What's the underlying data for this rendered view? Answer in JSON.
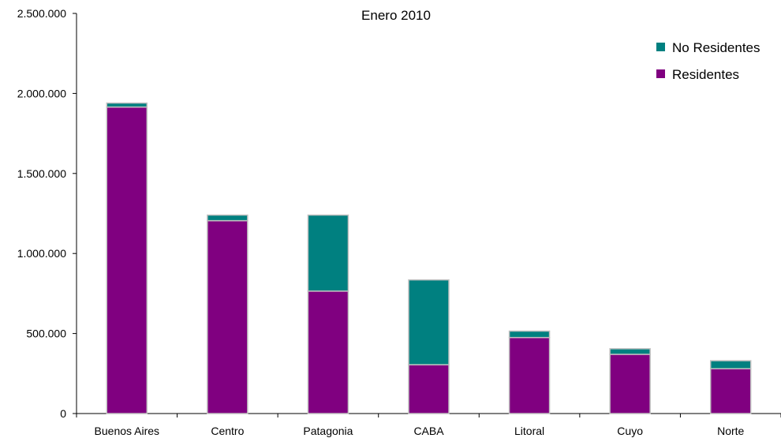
{
  "chart_data": {
    "type": "bar",
    "stacked": true,
    "title": "Enero 2010",
    "xlabel": "",
    "ylabel": "",
    "categories": [
      "Buenos Aires",
      "Centro",
      "Patagonia",
      "CABA",
      "Litoral",
      "Cuyo",
      "Norte"
    ],
    "series": [
      {
        "name": "Residentes",
        "color": "#800080",
        "values": [
          1915000,
          1205000,
          765000,
          305000,
          475000,
          370000,
          280000
        ]
      },
      {
        "name": "No Residentes",
        "color": "#008080",
        "values": [
          25000,
          35000,
          475000,
          530000,
          40000,
          35000,
          50000
        ]
      }
    ],
    "ylim": [
      0,
      2500000
    ],
    "yticks": [
      0,
      500000,
      1000000,
      1500000,
      2000000,
      2500000
    ],
    "ytick_labels": [
      "0",
      "500.000",
      "1.000.000",
      "1.500.000",
      "2.000.000",
      "2.500.000"
    ],
    "grid": false,
    "legend_position": "top-right",
    "legend_order": [
      "No Residentes",
      "Residentes"
    ]
  }
}
